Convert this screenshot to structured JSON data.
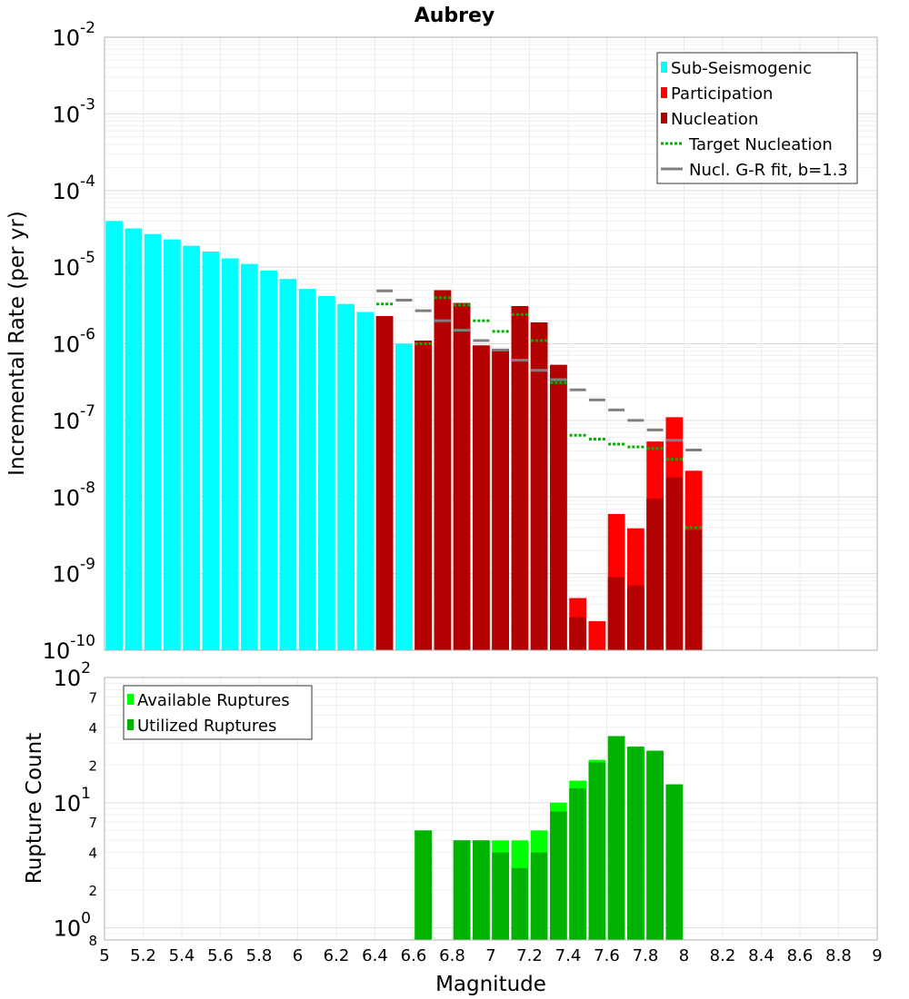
{
  "chart_data": [
    {
      "type": "bar",
      "title": "Aubrey",
      "ylabel": "Incremental Rate (per yr)",
      "yscale": "log",
      "ylim": [
        1e-10,
        0.01
      ],
      "xlim": [
        5,
        9
      ],
      "grid": true,
      "legend_position": "top-right",
      "y_tick_labels": [
        {
          "value": 1e-10,
          "base": "10",
          "exp": "-10"
        },
        {
          "value": 1e-09,
          "base": "10",
          "exp": "-9"
        },
        {
          "value": 1e-08,
          "base": "10",
          "exp": "-8"
        },
        {
          "value": 1e-07,
          "base": "10",
          "exp": "-7"
        },
        {
          "value": 1e-06,
          "base": "10",
          "exp": "-6"
        },
        {
          "value": 1e-05,
          "base": "10",
          "exp": "-5"
        },
        {
          "value": 0.0001,
          "base": "10",
          "exp": "-4"
        },
        {
          "value": 0.001,
          "base": "10",
          "exp": "-3"
        },
        {
          "value": 0.01,
          "base": "10",
          "exp": "-2"
        }
      ],
      "series": [
        {
          "name": "Sub-Seismogenic",
          "kind": "bar",
          "color": "#00ffff",
          "x": [
            5.05,
            5.15,
            5.25,
            5.35,
            5.45,
            5.55,
            5.65,
            5.75,
            5.85,
            5.95,
            6.05,
            6.15,
            6.25,
            6.35,
            6.55
          ],
          "values": [
            4e-05,
            3.2e-05,
            2.7e-05,
            2.3e-05,
            1.9e-05,
            1.6e-05,
            1.3e-05,
            1.1e-05,
            9e-06,
            7e-06,
            5.2e-06,
            4.2e-06,
            3.3e-06,
            2.6e-06,
            1e-06
          ]
        },
        {
          "name": "Participation",
          "kind": "bar",
          "color": "#ff0000",
          "x": [
            6.45,
            6.65,
            6.75,
            6.85,
            6.95,
            7.05,
            7.15,
            7.25,
            7.35,
            7.45,
            7.55,
            7.65,
            7.75,
            7.85,
            7.95,
            8.05
          ],
          "values": [
            2.3e-06,
            1.1e-06,
            5e-06,
            3.4e-06,
            9.5e-07,
            8.5e-07,
            3.1e-06,
            1.9e-06,
            5.3e-07,
            4.8e-10,
            2.4e-10,
            6e-09,
            3.9e-09,
            5.3e-08,
            1.1e-07,
            2.2e-08
          ]
        },
        {
          "name": "Nucleation",
          "kind": "bar",
          "color": "#b30000",
          "x": [
            6.45,
            6.65,
            6.75,
            6.85,
            6.95,
            7.05,
            7.15,
            7.25,
            7.35,
            7.45,
            7.55,
            7.65,
            7.75,
            7.85,
            7.95,
            8.05
          ],
          "values": [
            2.3e-06,
            1.1e-06,
            5e-06,
            3.4e-06,
            9.5e-07,
            8.5e-07,
            3.1e-06,
            1.9e-06,
            5.3e-07,
            2.7e-10,
            1e-10,
            9e-10,
            7e-10,
            9.5e-09,
            1.8e-08,
            3.7e-09
          ]
        },
        {
          "name": "Target Nucleation",
          "kind": "dash",
          "color": "#00b000",
          "x": [
            6.45,
            6.65,
            6.75,
            6.85,
            6.95,
            7.05,
            7.15,
            7.25,
            7.35,
            7.45,
            7.55,
            7.65,
            7.75,
            7.85,
            7.95,
            8.05
          ],
          "values": [
            3.3e-06,
            1e-06,
            4e-06,
            3.2e-06,
            2e-06,
            1.45e-06,
            2.4e-06,
            1.1e-06,
            3.1e-07,
            6.4e-08,
            5.7e-08,
            4.9e-08,
            4.5e-08,
            4.3e-08,
            3.1e-08,
            4e-09
          ]
        },
        {
          "name": "Nucl. G-R fit, b=1.3",
          "kind": "dash",
          "color": "#808080",
          "x": [
            6.45,
            6.55,
            6.65,
            6.75,
            6.85,
            6.95,
            7.05,
            7.15,
            7.25,
            7.35,
            7.45,
            7.55,
            7.65,
            7.75,
            7.85,
            7.95,
            8.05
          ],
          "values": [
            4.9e-06,
            3.7e-06,
            2.7e-06,
            2e-06,
            1.5e-06,
            1.1e-06,
            8.3e-07,
            6.1e-07,
            4.5e-07,
            3.4e-07,
            2.5e-07,
            1.85e-07,
            1.37e-07,
            1e-07,
            7.5e-08,
            5.5e-08,
            4.1e-08
          ]
        }
      ]
    },
    {
      "type": "bar",
      "xlabel": "Magnitude",
      "ylabel": "Rupture Count",
      "yscale": "log",
      "ylim": [
        0.8,
        100
      ],
      "xlim": [
        5,
        9
      ],
      "grid": true,
      "legend_position": "top-left",
      "x_ticks": [
        "5",
        "5.2",
        "5.4",
        "5.6",
        "5.8",
        "6",
        "6.2",
        "6.4",
        "6.6",
        "6.8",
        "7",
        "7.2",
        "7.4",
        "7.6",
        "7.8",
        "8",
        "8.2",
        "8.4",
        "8.6",
        "8.8",
        "9"
      ],
      "y_tick_labels": [
        {
          "value": 1,
          "base": "10",
          "exp": "0"
        },
        {
          "value": 10,
          "base": "10",
          "exp": "1"
        },
        {
          "value": 100,
          "base": "10",
          "exp": "2"
        }
      ],
      "y_minor_labels": [
        {
          "value": 0.8,
          "label": "8"
        },
        {
          "value": 2,
          "label": "2"
        },
        {
          "value": 4,
          "label": "4"
        },
        {
          "value": 7,
          "label": "7"
        },
        {
          "value": 20,
          "label": "2"
        },
        {
          "value": 40,
          "label": "4"
        },
        {
          "value": 70,
          "label": "7"
        }
      ],
      "series": [
        {
          "name": "Available Ruptures",
          "color": "#00ff00",
          "x": [
            6.65,
            6.85,
            6.95,
            7.05,
            7.15,
            7.25,
            7.35,
            7.45,
            7.55,
            7.65,
            7.75,
            7.85,
            7.95
          ],
          "values": [
            6,
            5,
            5,
            5,
            5,
            6,
            10,
            15,
            22,
            34,
            28,
            26,
            14
          ]
        },
        {
          "name": "Utilized Ruptures",
          "color": "#00b300",
          "x": [
            6.65,
            6.85,
            6.95,
            7.05,
            7.15,
            7.25,
            7.35,
            7.45,
            7.55,
            7.65,
            7.75,
            7.85,
            7.95
          ],
          "values": [
            6,
            5,
            5,
            4,
            3,
            4,
            8.5,
            13,
            21,
            34,
            28,
            26,
            14
          ]
        }
      ]
    }
  ]
}
